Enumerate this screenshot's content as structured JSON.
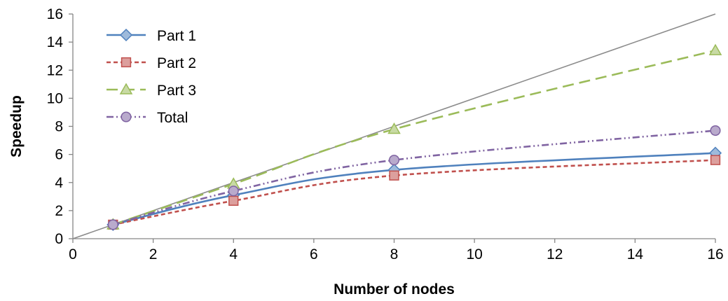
{
  "chart_data": {
    "type": "line",
    "title": "",
    "xlabel": "Number of nodes",
    "ylabel": "Speedup",
    "xlim": [
      0,
      16
    ],
    "ylim": [
      0,
      16
    ],
    "x_ticks": [
      0,
      2,
      4,
      6,
      8,
      10,
      12,
      14,
      16
    ],
    "y_ticks": [
      0,
      2,
      4,
      6,
      8,
      10,
      12,
      14,
      16
    ],
    "grid": false,
    "legend_position": "top-left",
    "reference_line": {
      "x": [
        0,
        16
      ],
      "y": [
        0,
        16
      ],
      "color": "#8c8c8c"
    },
    "series": [
      {
        "name": "Part 1",
        "x": [
          1,
          4,
          8,
          16
        ],
        "y": [
          1.0,
          3.1,
          4.9,
          6.1
        ],
        "color": "#4f81bd",
        "marker": "diamond",
        "dash": "solid"
      },
      {
        "name": "Part 2",
        "x": [
          1,
          4,
          8,
          16
        ],
        "y": [
          1.0,
          2.7,
          4.5,
          5.6
        ],
        "color": "#c0504d",
        "marker": "square",
        "dash": "short-dash"
      },
      {
        "name": "Part 3",
        "x": [
          1,
          4,
          8,
          16
        ],
        "y": [
          1.0,
          3.9,
          7.8,
          13.4
        ],
        "color": "#9bbb59",
        "marker": "triangle",
        "dash": "long-dash"
      },
      {
        "name": "Total",
        "x": [
          1,
          4,
          8,
          16
        ],
        "y": [
          1.0,
          3.4,
          5.6,
          7.7
        ],
        "color": "#8064a2",
        "marker": "circle",
        "dash": "dash-dot-dot"
      }
    ]
  }
}
